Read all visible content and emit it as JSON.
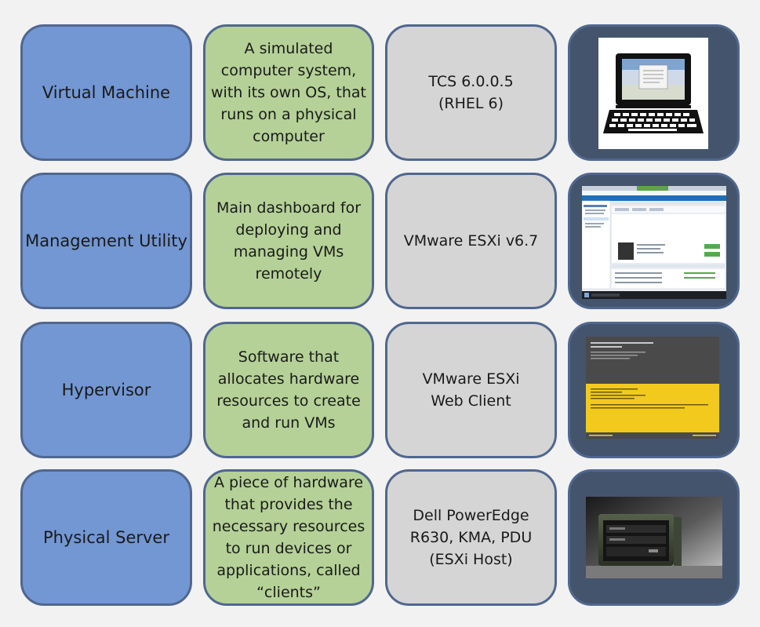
{
  "rows": [
    {
      "layer": "Virtual Machine",
      "description": "A simulated\ncomputer system,\nwith its own OS, that\nruns on a physical\ncomputer",
      "product": "TCS 6.0.0.5\n(RHEL 6)",
      "image_icon": "laptop-icon"
    },
    {
      "layer": "Management Utility",
      "description": "Main dashboard for\ndeploying and\nmanaging VMs\nremotely",
      "product": "VMware ESXi v6.7",
      "image_icon": "esxi-dashboard-screenshot"
    },
    {
      "layer": "Hypervisor",
      "description": "Software that\nallocates hardware\nresources to create\nand run VMs",
      "product": "VMware ESXi\nWeb Client",
      "image_icon": "esxi-console-screenshot"
    },
    {
      "layer": "Physical Server",
      "description": "A piece of hardware\nthat provides the\nnecessary resources\nto run devices or\napplications, called\n“clients”",
      "product": "Dell PowerEdge\nR630, KMA, PDU\n(ESXi Host)",
      "image_icon": "rugged-server-photo"
    }
  ],
  "colors": {
    "layer": "#7397d3",
    "description": "#b5d197",
    "product": "#d5d5d5",
    "image_frame": "#44546c",
    "border": "#50678f"
  }
}
